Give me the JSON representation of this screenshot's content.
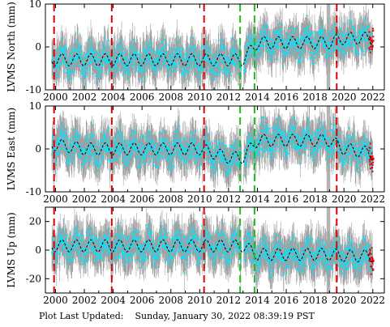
{
  "footer": {
    "label": "Plot Last Updated:",
    "timestamp": "Sunday, January 30, 2022 08:39:19 PST"
  },
  "colors": {
    "scatter": "#00e5ff",
    "error_bars": "#a0a0a0",
    "recent_points": "#ee0000",
    "model_line": "#000000",
    "red_event_line": "#dd0000",
    "green_event_line": "#22bb22",
    "gap_shading": "#a0a0a0"
  },
  "chart_data": [
    {
      "type": "scatter",
      "ylabel": "LVMS North (mm)",
      "xlim": [
        1999.3,
        2022.8
      ],
      "ylim": [
        -10,
        10
      ],
      "yticks": [
        -10,
        0,
        10
      ],
      "xticks": [
        2000,
        2002,
        2004,
        2006,
        2008,
        2010,
        2012,
        2014,
        2016,
        2018,
        2020,
        2022
      ],
      "xtick_labels": [
        "2000",
        "2002",
        "2004",
        "2006",
        "2008",
        "2010",
        "2012",
        "2014",
        "2016",
        "2018",
        "2020",
        "2022"
      ],
      "series": [
        {
          "x": [
            2000,
            2002,
            2004,
            2006,
            2008,
            2010,
            2012,
            2013,
            2014,
            2016,
            2018,
            2019,
            2020,
            2022
          ],
          "values": [
            -3,
            -3,
            -3,
            -3,
            -3,
            -3,
            -3,
            -3,
            1,
            1,
            1,
            1,
            2,
            2
          ]
        }
      ],
      "annotations": [
        {
          "x": 1999.9,
          "type": "red dashed event line"
        },
        {
          "x": 2003.9,
          "type": "red dashed event line"
        },
        {
          "x": 2010.3,
          "type": "red dashed event line"
        },
        {
          "x": 2012.8,
          "type": "green dashed event line"
        },
        {
          "x": 2013.8,
          "type": "green dashed event line"
        },
        {
          "x": 2019.5,
          "type": "red dashed event line"
        }
      ]
    },
    {
      "type": "scatter",
      "ylabel": "LVMS East (mm)",
      "xlim": [
        1999.3,
        2022.8
      ],
      "ylim": [
        -10,
        10
      ],
      "yticks": [
        -10,
        0,
        10
      ],
      "xticks": [
        2000,
        2002,
        2004,
        2006,
        2008,
        2010,
        2012,
        2014,
        2016,
        2018,
        2020,
        2022
      ],
      "xtick_labels": [
        "2000",
        "2002",
        "2004",
        "2006",
        "2008",
        "2010",
        "2012",
        "2014",
        "2016",
        "2018",
        "2020",
        "2022"
      ],
      "series": [
        {
          "x": [
            2000,
            2002,
            2004,
            2006,
            2008,
            2010,
            2012,
            2013,
            2014,
            2016,
            2018,
            2019,
            2020,
            2022
          ],
          "values": [
            1,
            0,
            0,
            0,
            0,
            0,
            -2,
            -2,
            2,
            2,
            2,
            2,
            0,
            -1
          ]
        }
      ],
      "annotations": [
        {
          "x": 1999.9,
          "type": "red dashed event line"
        },
        {
          "x": 2003.9,
          "type": "red dashed event line"
        },
        {
          "x": 2010.3,
          "type": "red dashed event line"
        },
        {
          "x": 2012.8,
          "type": "green dashed event line"
        },
        {
          "x": 2013.8,
          "type": "green dashed event line"
        },
        {
          "x": 2019.5,
          "type": "red dashed event line"
        }
      ]
    },
    {
      "type": "scatter",
      "ylabel": "LVMS Up (mm)",
      "xlim": [
        1999.3,
        2022.8
      ],
      "ylim": [
        -30,
        30
      ],
      "yticks": [
        -20,
        0,
        20
      ],
      "xticks": [
        2000,
        2002,
        2004,
        2006,
        2008,
        2010,
        2012,
        2014,
        2016,
        2018,
        2020,
        2022
      ],
      "xtick_labels": [
        "2000",
        "2002",
        "2004",
        "2006",
        "2008",
        "2010",
        "2012",
        "2014",
        "2016",
        "2018",
        "2020",
        "2022"
      ],
      "series": [
        {
          "x": [
            2000,
            2002,
            2004,
            2006,
            2008,
            2010,
            2012,
            2013,
            2014,
            2016,
            2018,
            2019,
            2020,
            2022
          ],
          "values": [
            3,
            3,
            3,
            3,
            3,
            3,
            3,
            3,
            -3,
            -3,
            -3,
            -3,
            -4,
            -4
          ]
        }
      ],
      "annotations": [
        {
          "x": 1999.9,
          "type": "red dashed event line"
        },
        {
          "x": 2003.9,
          "type": "red dashed event line"
        },
        {
          "x": 2010.3,
          "type": "red dashed event line"
        },
        {
          "x": 2012.8,
          "type": "green dashed event line"
        },
        {
          "x": 2013.8,
          "type": "green dashed event line"
        },
        {
          "x": 2019.5,
          "type": "red dashed event line"
        }
      ]
    }
  ]
}
